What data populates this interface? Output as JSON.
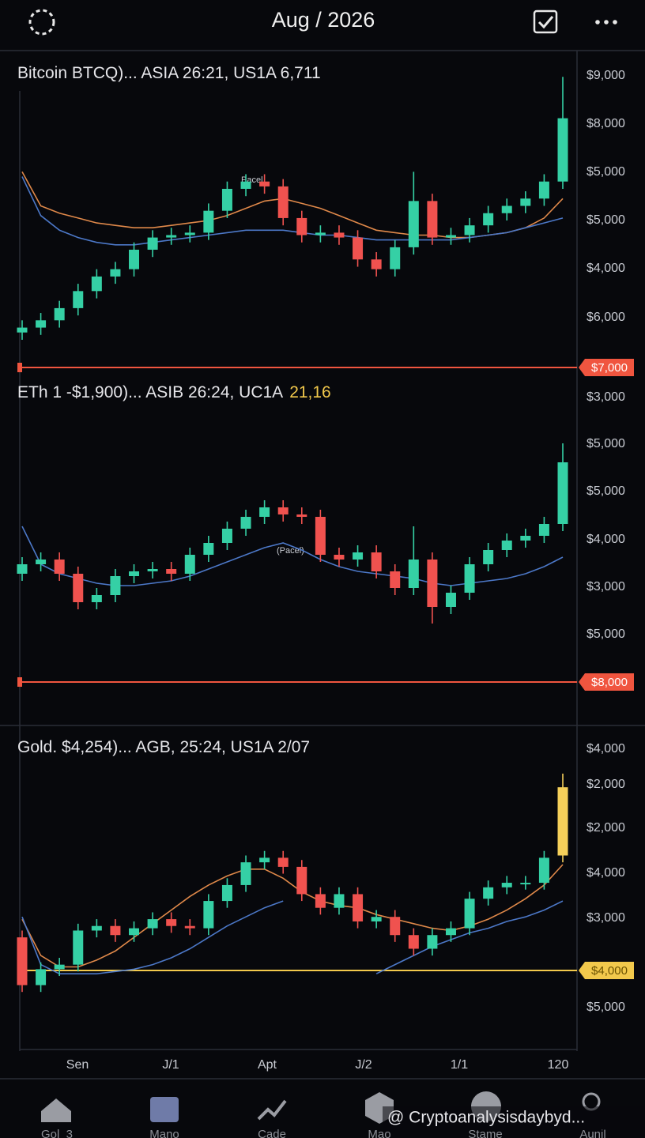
{
  "header": {
    "title": "Aug / 2026"
  },
  "panels": [
    {
      "title": "Bitcoin BTCQ)... ASIA 26:21, US1A 6,711",
      "annotation": "Pacel",
      "axis_labels": [
        "$9,000",
        "$8,000",
        "$5,000",
        "$5,000",
        "$4,000",
        "$6,000"
      ],
      "price_tag": "$7,000",
      "price_line_color": "#f0553f",
      "chart_data": {
        "type": "candlestick",
        "ylim": [
          2900,
          9100
        ],
        "up_color": "#35d0a5",
        "down_color": "#f0524f",
        "open": [
          3700,
          3800,
          3950,
          4200,
          4550,
          4850,
          5000,
          5400,
          5650,
          5700,
          5750,
          6200,
          6650,
          6800,
          6700,
          6050,
          5700,
          5750,
          5650,
          5200,
          5000,
          5450,
          6400,
          5650,
          5700,
          5900,
          6150,
          6300,
          6450,
          6800
        ],
        "high": [
          3950,
          4100,
          4350,
          4700,
          5000,
          5150,
          5550,
          5800,
          5850,
          5900,
          6350,
          6800,
          6950,
          6950,
          6850,
          6200,
          5900,
          5900,
          5800,
          5350,
          5600,
          7000,
          6550,
          5850,
          6050,
          6300,
          6450,
          6600,
          6950,
          8950
        ],
        "low": [
          3550,
          3650,
          3800,
          4050,
          4400,
          4700,
          4850,
          5250,
          5500,
          5550,
          5600,
          6050,
          6500,
          6550,
          5900,
          5550,
          5550,
          5500,
          5050,
          4850,
          4850,
          5300,
          5500,
          5500,
          5550,
          5750,
          6000,
          6150,
          6300,
          6650
        ],
        "close": [
          3800,
          3950,
          4200,
          4550,
          4850,
          5000,
          5400,
          5650,
          5700,
          5750,
          6200,
          6650,
          6800,
          6700,
          6050,
          5700,
          5750,
          5650,
          5200,
          5000,
          5450,
          6400,
          5650,
          5700,
          5900,
          6150,
          6300,
          6450,
          6800,
          8100
        ],
        "series": [
          {
            "color": "#e0894a",
            "values": [
              7000,
              6300,
              6150,
              6050,
              5950,
              5900,
              5850,
              5850,
              5900,
              5950,
              6000,
              6100,
              6250,
              6400,
              6450,
              6350,
              6250,
              6100,
              5950,
              5800,
              5750,
              5700,
              5700,
              5650,
              5650,
              5700,
              5750,
              5850,
              6050,
              6450
            ]
          },
          {
            "color": "#4c78c8",
            "values": [
              6900,
              6100,
              5800,
              5650,
              5550,
              5500,
              5500,
              5550,
              5600,
              5650,
              5700,
              5750,
              5800,
              5800,
              5800,
              5750,
              5700,
              5700,
              5650,
              5600,
              5600,
              5600,
              5600,
              5600,
              5650,
              5700,
              5750,
              5850,
              5950,
              6050
            ]
          }
        ]
      }
    },
    {
      "title": "ETh 1 -$1,900)... ASIB 26:24, UC1A",
      "title_highlight": "21,16",
      "annotation": "(Pacel)",
      "axis_labels": [
        "$3,000",
        "$5,000",
        "$5,000",
        "$4,000",
        "$3,000",
        "$5,000"
      ],
      "price_tag": "$8,000",
      "price_line_color": "#f0553f",
      "chart_data": {
        "type": "candlestick",
        "ylim": [
          150,
          7400
        ],
        "up_color": "#35d0a5",
        "down_color": "#f0524f",
        "open": [
          3300,
          3500,
          3600,
          3300,
          2700,
          2850,
          3250,
          3350,
          3400,
          3300,
          3700,
          3950,
          4250,
          4500,
          4700,
          4550,
          4500,
          3700,
          3600,
          3750,
          3350,
          3000,
          3600,
          2600,
          2900,
          3500,
          3800,
          4000,
          4100,
          4350
        ],
        "high": [
          3650,
          3750,
          3750,
          3450,
          3000,
          3400,
          3500,
          3550,
          3550,
          3850,
          4100,
          4400,
          4650,
          4850,
          4850,
          4700,
          4650,
          3850,
          3900,
          3900,
          3500,
          4300,
          3750,
          3050,
          3650,
          3950,
          4150,
          4250,
          4500,
          6050
        ],
        "low": [
          3150,
          3350,
          3150,
          2550,
          2550,
          2700,
          3100,
          3200,
          3150,
          3150,
          3550,
          3800,
          4100,
          4350,
          4400,
          4350,
          3550,
          3450,
          3450,
          3200,
          2850,
          2850,
          2250,
          2450,
          2750,
          3350,
          3650,
          3850,
          3950,
          4200
        ],
        "close": [
          3500,
          3600,
          3300,
          2700,
          2850,
          3250,
          3350,
          3400,
          3300,
          3700,
          3950,
          4250,
          4500,
          4700,
          4550,
          4500,
          3700,
          3600,
          3750,
          3350,
          3000,
          3600,
          2600,
          2900,
          3500,
          3800,
          4000,
          4100,
          4350,
          5650
        ],
        "series": [
          {
            "color": "#4c78c8",
            "values": [
              4300,
              3500,
              3300,
              3200,
              3100,
              3050,
              3050,
              3100,
              3150,
              3250,
              3400,
              3550,
              3700,
              3850,
              3950,
              3800,
              3600,
              3450,
              3350,
              3300,
              3250,
              3200,
              3100,
              3050,
              3100,
              3150,
              3200,
              3300,
              3450,
              3650
            ]
          }
        ]
      }
    },
    {
      "title": "Gold. $4,254)... AGB, 25:24, US1A 2/07",
      "axis_labels": [
        "$4,000",
        "$2,000",
        "$2,000",
        "$4,000",
        "$3,000",
        "$5,000"
      ],
      "price_tag": "$4,000",
      "price_line_color": "#f2c94c",
      "chart_data": {
        "type": "candlestick",
        "ylim": [
          100,
          7050
        ],
        "up_color": "#35d0a5",
        "down_color": "#f0524f",
        "last_candle_color": "#f5cf5a",
        "open": [
          2600,
          1550,
          1900,
          2000,
          2750,
          2850,
          2650,
          2800,
          3000,
          2850,
          2800,
          3400,
          3750,
          4250,
          4350,
          4150,
          3550,
          3250,
          3550,
          2950,
          3050,
          2650,
          2350,
          2650,
          2800,
          3450,
          3700,
          3800,
          3800,
          4400
        ],
        "high": [
          2750,
          2050,
          2150,
          2900,
          3000,
          3000,
          2950,
          3150,
          3150,
          3000,
          3550,
          3900,
          4400,
          4500,
          4500,
          4300,
          3700,
          3700,
          3700,
          3200,
          3200,
          2800,
          2800,
          2950,
          3600,
          3850,
          3950,
          3950,
          4500,
          6200
        ],
        "low": [
          1400,
          1400,
          1750,
          1850,
          2600,
          2500,
          2500,
          2650,
          2700,
          2650,
          2650,
          3250,
          3600,
          4100,
          4000,
          3400,
          3100,
          3100,
          2800,
          2800,
          2500,
          2200,
          2200,
          2500,
          2650,
          3300,
          3550,
          3650,
          3650,
          4250
        ],
        "close": [
          1550,
          1900,
          2000,
          2750,
          2850,
          2650,
          2800,
          3000,
          2850,
          2800,
          3400,
          3750,
          4250,
          4350,
          4150,
          3550,
          3250,
          3550,
          2950,
          3050,
          2650,
          2350,
          2650,
          2800,
          3450,
          3700,
          3800,
          3800,
          4350,
          5900
        ],
        "series": [
          {
            "color": "#e0894a",
            "values": [
              3000,
              2200,
              1950,
              1950,
              2100,
              2300,
              2600,
              2900,
              3200,
              3500,
              3750,
              3950,
              4100,
              4100,
              3900,
              3600,
              3400,
              3300,
              3250,
              3100,
              3000,
              2900,
              2800,
              2750,
              2850,
              3000,
              3200,
              3450,
              3750,
              4200
            ]
          },
          {
            "color": "#4c78c8",
            "values": [
              3050,
              2000,
              1800,
              1800,
              1800,
              1850,
              1900,
              2000,
              2150,
              2350,
              2600,
              2850,
              3050,
              3250,
              3400,
              null,
              null,
              null,
              null,
              1800,
              2000,
              2200,
              2400,
              2550,
              2700,
              2800,
              2950,
              3050,
              3200,
              3400
            ]
          }
        ]
      }
    }
  ],
  "x_labels": [
    "Sen",
    "J/1",
    "Apt",
    "J/2",
    "1/1",
    "120"
  ],
  "nav": [
    "Gol_3",
    "Mano",
    "Cade",
    "Mao",
    "Stame",
    "Aunil"
  ],
  "watermark": "@ Cryptoanalysisdaybyd..."
}
